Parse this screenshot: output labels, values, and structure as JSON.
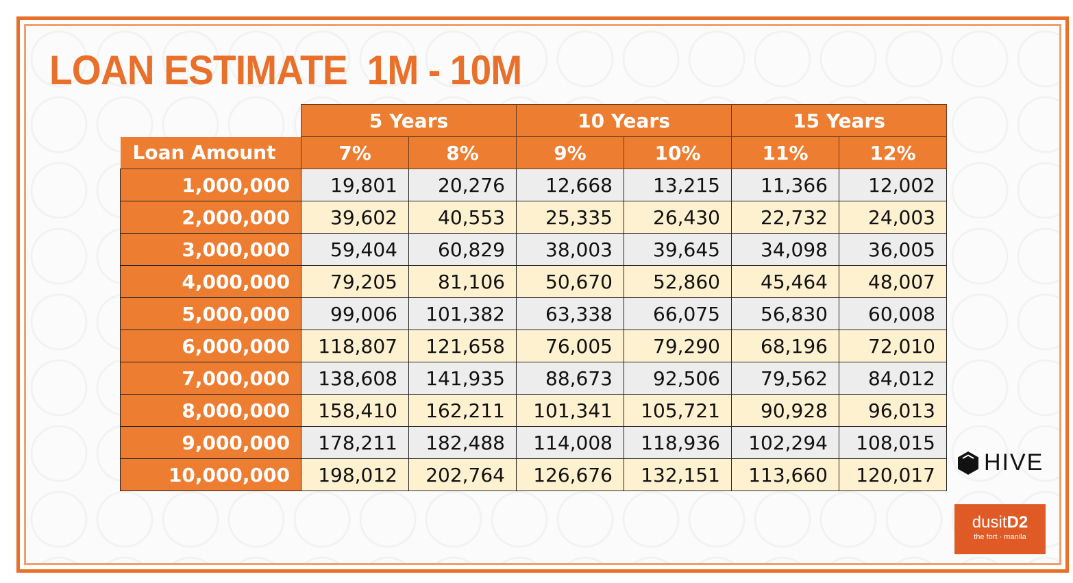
{
  "title": "LOAN ESTIMATE  1M - 10M",
  "table": {
    "amount_header": "Loan Amount",
    "terms": [
      {
        "label": "5 Years",
        "rates": [
          "7%",
          "8%"
        ]
      },
      {
        "label": "10 Years",
        "rates": [
          "9%",
          "10%"
        ]
      },
      {
        "label": "15 Years",
        "rates": [
          "11%",
          "12%"
        ]
      }
    ],
    "rows": [
      {
        "amount": "1,000,000",
        "values": [
          "19,801",
          "20,276",
          "12,668",
          "13,215",
          "11,366",
          "12,002"
        ]
      },
      {
        "amount": "2,000,000",
        "values": [
          "39,602",
          "40,553",
          "25,335",
          "26,430",
          "22,732",
          "24,003"
        ]
      },
      {
        "amount": "3,000,000",
        "values": [
          "59,404",
          "60,829",
          "38,003",
          "39,645",
          "34,098",
          "36,005"
        ]
      },
      {
        "amount": "4,000,000",
        "values": [
          "79,205",
          "81,106",
          "50,670",
          "52,860",
          "45,464",
          "48,007"
        ]
      },
      {
        "amount": "5,000,000",
        "values": [
          "99,006",
          "101,382",
          "63,338",
          "66,075",
          "56,830",
          "60,008"
        ]
      },
      {
        "amount": "6,000,000",
        "values": [
          "118,807",
          "121,658",
          "76,005",
          "79,290",
          "68,196",
          "72,010"
        ]
      },
      {
        "amount": "7,000,000",
        "values": [
          "138,608",
          "141,935",
          "88,673",
          "92,506",
          "79,562",
          "84,012"
        ]
      },
      {
        "amount": "8,000,000",
        "values": [
          "158,410",
          "162,211",
          "101,341",
          "105,721",
          "90,928",
          "96,013"
        ]
      },
      {
        "amount": "9,000,000",
        "values": [
          "178,211",
          "182,488",
          "114,008",
          "118,936",
          "102,294",
          "108,015"
        ]
      },
      {
        "amount": "10,000,000",
        "values": [
          "198,012",
          "202,764",
          "126,676",
          "132,151",
          "113,660",
          "120,017"
        ]
      }
    ]
  },
  "logos": {
    "hive": "HIVE",
    "dusit_name": "dusit",
    "dusit_mark": "D2",
    "dusit_tagline": "the fort · manila"
  },
  "colors": {
    "accent": "#ed7d31",
    "title": "#e8702a",
    "row_odd": "#ededed",
    "row_even": "#fdf1d0"
  }
}
